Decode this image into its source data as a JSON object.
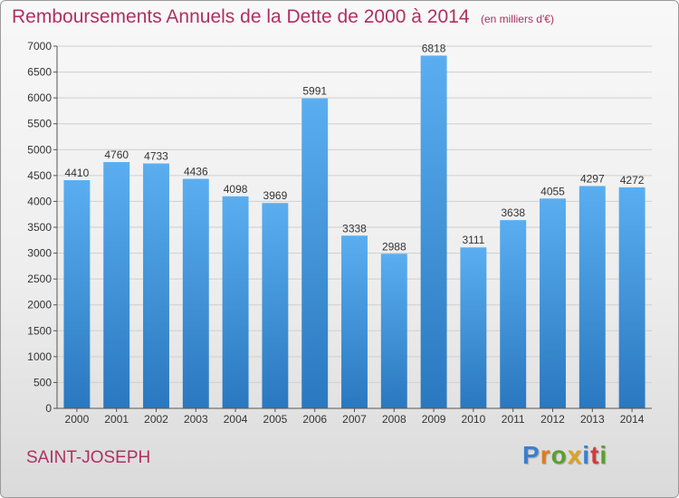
{
  "header": {
    "title": "Remboursements Annuels de la Dette de 2000 à 2014",
    "subtitle": "(en milliers d'€)"
  },
  "footer": {
    "commune": "SAINT-JOSEPH",
    "logo": {
      "letters": [
        "P",
        "r",
        "o",
        "x",
        "i",
        "t",
        "i"
      ],
      "colors": [
        "#3a7fd0",
        "#e07a1a",
        "#5aa02c",
        "#e0a21a",
        "#3a7fd0",
        "#d43c3c",
        "#5aa02c"
      ]
    }
  },
  "chart_data": {
    "type": "bar",
    "title": "Remboursements Annuels de la Dette de 2000 à 2014",
    "subtitle": "(en milliers d'€)",
    "categories": [
      "2000",
      "2001",
      "2002",
      "2003",
      "2004",
      "2005",
      "2006",
      "2007",
      "2008",
      "2009",
      "2010",
      "2011",
      "2012",
      "2013",
      "2014"
    ],
    "values": [
      4410,
      4760,
      4733,
      4436,
      4098,
      3969,
      5991,
      3338,
      2988,
      6818,
      3111,
      3638,
      4055,
      4297,
      4272
    ],
    "ylim": [
      0,
      7000
    ],
    "yticks": [
      0,
      500,
      1000,
      1500,
      2000,
      2500,
      3000,
      3500,
      4000,
      4500,
      5000,
      5500,
      6000,
      6500,
      7000
    ],
    "grid": true,
    "bar_color_top": "#5aaef0",
    "bar_color_bottom": "#2a78c0"
  }
}
